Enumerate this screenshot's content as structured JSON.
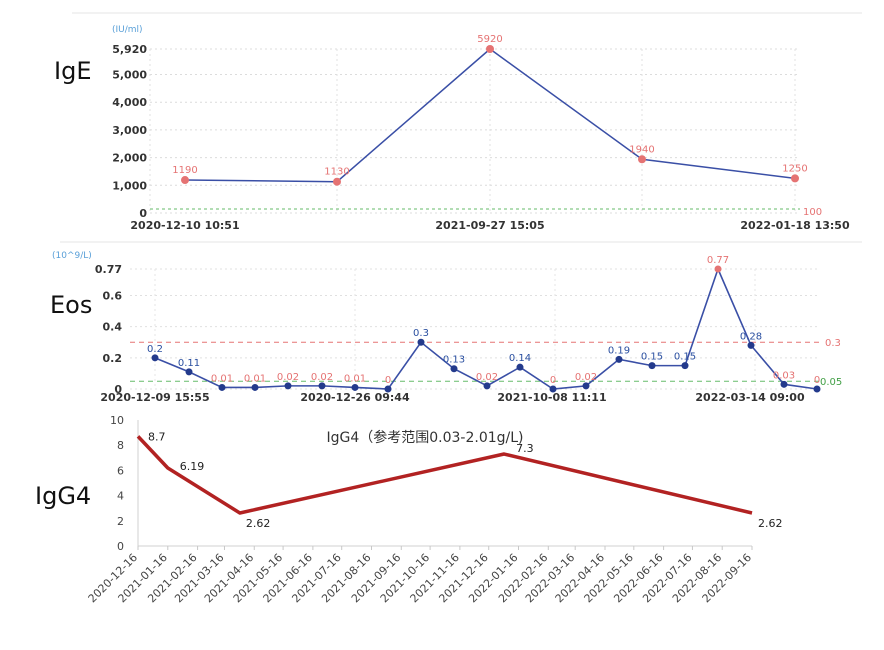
{
  "labels": {
    "ige": "IgE",
    "eos": "Eos",
    "igg4": "IgG4"
  },
  "chart_data": [
    {
      "type": "line",
      "name": "IgE",
      "unit": "(IU/ml)",
      "y_ticks": [
        "5,920",
        "5,000",
        "4,000",
        "3,000",
        "2,000",
        "1,000",
        "0"
      ],
      "x_ticks": [
        "2020-12-10 10:51",
        "2021-09-27 15:05",
        "2022-01-18 13:50"
      ],
      "x": [
        "2020-12-10 10:51",
        "2021-05-01",
        "2021-09-27 15:05",
        "2021-12-01",
        "2022-01-18 13:50"
      ],
      "values": [
        1190,
        1130,
        5920,
        1940,
        1250
      ],
      "data_labels": [
        "1190",
        "1130",
        "5920",
        "1940",
        "1250"
      ],
      "reference_value": 100,
      "reference_label": "100",
      "ylim": [
        0,
        5920
      ],
      "color": "#3a4fa6",
      "marker_color": "#e57373"
    },
    {
      "type": "line",
      "name": "Eos",
      "unit": "(10^9/L)",
      "y_ticks": [
        "0.77",
        "0.6",
        "0.4",
        "0.2",
        "0"
      ],
      "x_ticks": [
        "2020-12-09 15:55",
        "2020-12-26 09:44",
        "2021-10-08 11:11",
        "2022-03-14 09:00"
      ],
      "values": [
        0.2,
        0.11,
        0.01,
        0.01,
        0.02,
        0.02,
        0.01,
        0,
        0.3,
        0.13,
        0.02,
        0.14,
        0,
        0.02,
        0.19,
        0.15,
        0.15,
        0.77,
        0.28,
        0.03,
        0
      ],
      "data_labels": [
        "0.2",
        "0.11",
        "0.01",
        "0.01",
        "0.02",
        "0.02",
        "0.01",
        "0",
        "0.3",
        "0.13",
        "0.02",
        "0.14",
        "0",
        "0.02",
        "0.19",
        "0.15",
        "0.15",
        "0.77",
        "0.28",
        "0.03",
        "0"
      ],
      "reference_high": 0.3,
      "reference_high_label": "0.3",
      "reference_low": 0.05,
      "reference_low_label": "0.05",
      "ylim": [
        0,
        0.77
      ],
      "color": "#3a4fa6",
      "marker_color": "#233a8c"
    },
    {
      "type": "line",
      "name": "IgG4",
      "title": "IgG4（参考范围0.03-2.01g/L)",
      "y_ticks": [
        "10",
        "8",
        "6",
        "4",
        "2",
        "0"
      ],
      "x_ticks": [
        "2020-12-16",
        "2021-01-16",
        "2021-02-16",
        "2021-03-16",
        "2021-04-16",
        "2021-05-16",
        "2021-06-16",
        "2021-07-16",
        "2021-08-16",
        "2021-09-16",
        "2021-10-16",
        "2021-11-16",
        "2021-12-16",
        "2022-01-16",
        "2022-02-16",
        "2022-03-16",
        "2022-04-16",
        "2022-05-16",
        "2022-06-16",
        "2022-07-16",
        "2022-08-16",
        "2022-09-16"
      ],
      "x": [
        "2020-12-16",
        "2021-01-16",
        "2021-04-01",
        "2022-01-01",
        "2022-09-16"
      ],
      "values": [
        8.7,
        6.19,
        2.62,
        7.3,
        2.62
      ],
      "data_labels": [
        "8.7",
        "6.19",
        "2.62",
        "7.3",
        "2.62"
      ],
      "ylim": [
        0,
        10
      ],
      "color": "#b22222"
    }
  ]
}
